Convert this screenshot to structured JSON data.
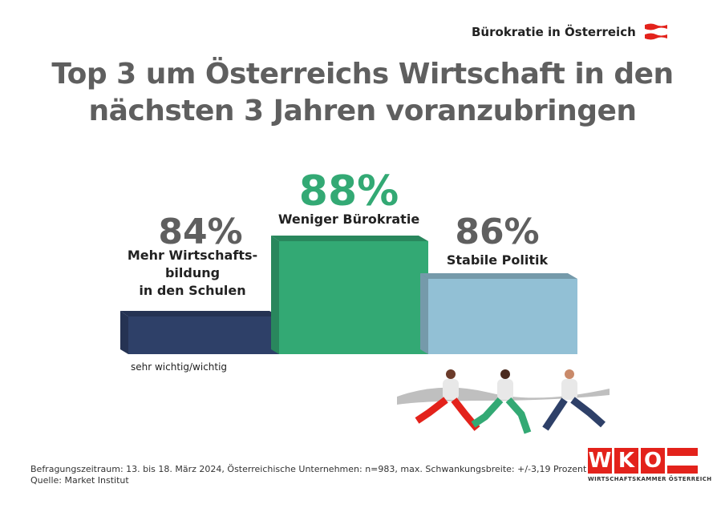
{
  "header": {
    "topic": "Bürokratie in Österreich",
    "flag_colors": [
      "#e3221b",
      "#ffffff",
      "#e3221b"
    ]
  },
  "title": [
    "Top 3 um Österreichs Wirtschaft in den",
    "nächsten 3 Jahren voranzubringen"
  ],
  "chart_data": {
    "type": "bar",
    "categories": [
      "Mehr Wirtschaftsbildung in den Schulen",
      "Weniger Bürokratie",
      "Stabile Politik"
    ],
    "values": [
      84,
      88,
      86
    ],
    "value_labels": [
      "84%",
      "88%",
      "86%"
    ],
    "label_lines": [
      [
        "Mehr Wirtschafts-",
        "bildung",
        "in den Schulen"
      ],
      [
        "Weniger Bürokratie"
      ],
      [
        "Stabile Politik"
      ]
    ],
    "colors": [
      "#2e4068",
      "#33a974",
      "#92c0d5"
    ],
    "pct_colors": [
      "#5f5f5f",
      "#33a974",
      "#5f5f5f"
    ],
    "ylabel": "",
    "note": "sehr wichtig/wichtig",
    "layout": "podium"
  },
  "footer": {
    "line1": "Befragungszeitraum: 13. bis 18. März 2024, Österreichische Unternehmen: n=983, max. Schwankungsbreite: +/-3,19 Prozent",
    "line2": "Quelle: Market Institut"
  },
  "logo": {
    "letters": [
      "W",
      "K",
      "O"
    ],
    "subtitle": "WIRTSCHAFTSKAMMER ÖSTERREICH",
    "color": "#e3221b"
  }
}
